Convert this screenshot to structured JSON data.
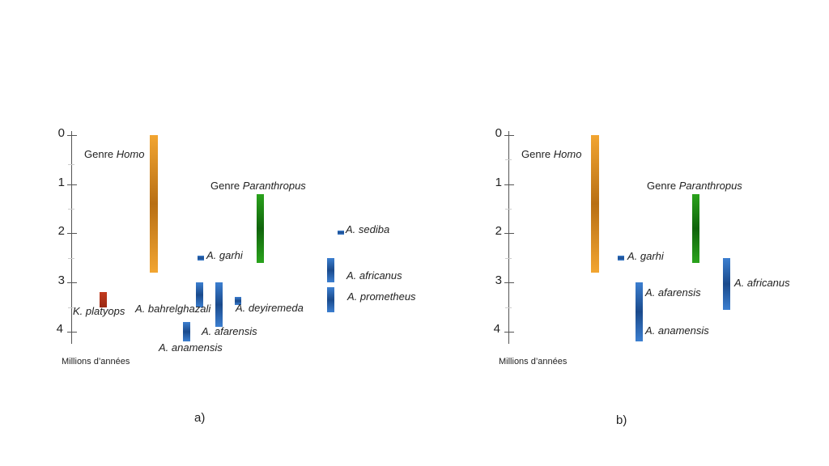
{
  "axis": {
    "ticks": [
      "0",
      "1",
      "2",
      "3",
      "4"
    ],
    "unit_label": "Millions d’années",
    "range": [
      0,
      4.2
    ]
  },
  "panels": [
    {
      "caption": "a)",
      "genus_labels": {
        "homo_prefix": "Genre ",
        "homo": "Homo",
        "paranthropus_prefix": "Genre ",
        "paranthropus": "Paranthropus"
      },
      "taxa": [
        {
          "name": "Homo",
          "range": [
            0,
            2.8
          ],
          "color": "#f2a531"
        },
        {
          "name": "Paranthropus",
          "range": [
            1.2,
            2.6
          ],
          "color": "#2aa31c"
        },
        {
          "name": "K. platyops",
          "range": [
            3.2,
            3.5
          ],
          "color": "#c23a1e"
        },
        {
          "name": "A. garhi",
          "range": [
            2.45,
            2.55
          ],
          "color": "#2a5fa8"
        },
        {
          "name": "A. bahrelghazali",
          "range": [
            3.0,
            3.5
          ],
          "color": "#2a5fa8"
        },
        {
          "name": "A. afarensis",
          "range": [
            3.0,
            3.9
          ],
          "color": "#2a5fa8"
        },
        {
          "name": "A. deyiremeda",
          "range": [
            3.3,
            3.45
          ],
          "color": "#2a5fa8"
        },
        {
          "name": "A. anamensis",
          "range": [
            3.8,
            4.2
          ],
          "color": "#2a5fa8"
        },
        {
          "name": "A. sediba",
          "range": [
            1.95,
            2.02
          ],
          "color": "#2a5fa8"
        },
        {
          "name": "A. africanus",
          "range": [
            2.5,
            3.0
          ],
          "color": "#2a5fa8"
        },
        {
          "name": "A. prometheus",
          "range": [
            3.1,
            3.6
          ],
          "color": "#2a5fa8"
        }
      ]
    },
    {
      "caption": "b)",
      "genus_labels": {
        "homo_prefix": "Genre ",
        "homo": "Homo",
        "paranthropus_prefix": "Genre ",
        "paranthropus": "Paranthropus"
      },
      "taxa": [
        {
          "name": "Homo",
          "range": [
            0,
            2.8
          ],
          "color": "#f2a531"
        },
        {
          "name": "Paranthropus",
          "range": [
            1.2,
            2.6
          ],
          "color": "#2aa31c"
        },
        {
          "name": "A. garhi",
          "range": [
            2.45,
            2.55
          ],
          "color": "#2a5fa8"
        },
        {
          "name": "A. afarensis / A. anamensis",
          "range": [
            3.0,
            4.2
          ],
          "color": "#2a5fa8"
        },
        {
          "name": "A. africanus",
          "range": [
            2.5,
            3.55
          ],
          "color": "#2a5fa8"
        }
      ],
      "labels": [
        "A. garhi",
        "A. afarensis",
        "A. anamensis",
        "A. africanus"
      ]
    }
  ]
}
